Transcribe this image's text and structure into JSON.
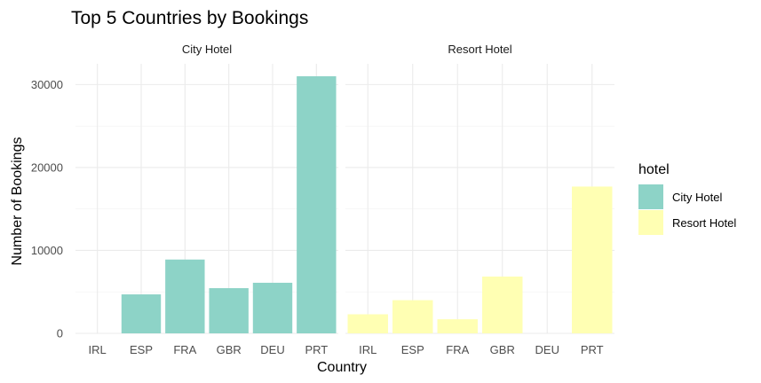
{
  "chart_data": {
    "type": "bar",
    "title": "Top 5 Countries by Bookings",
    "xlabel": "Country",
    "ylabel": "Number of Bookings",
    "ylim": [
      0,
      32500
    ],
    "yticks": [
      0,
      10000,
      20000,
      30000
    ],
    "ytick_labels": [
      "0",
      "10000",
      "20000",
      "30000"
    ],
    "categories": [
      "IRL",
      "ESP",
      "FRA",
      "GBR",
      "DEU",
      "PRT"
    ],
    "grid": true,
    "legend": {
      "title": "hotel",
      "position": "right",
      "entries": [
        "City Hotel",
        "Resort Hotel"
      ]
    },
    "facets": [
      "City Hotel",
      "Resort Hotel"
    ],
    "series": [
      {
        "name": "City Hotel",
        "color": "#8DD3C7",
        "values": [
          0,
          4700,
          8900,
          5450,
          6100,
          31000
        ]
      },
      {
        "name": "Resort Hotel",
        "color": "#FFFFB3",
        "values": [
          2300,
          4000,
          1700,
          6850,
          0,
          17700
        ]
      }
    ]
  }
}
